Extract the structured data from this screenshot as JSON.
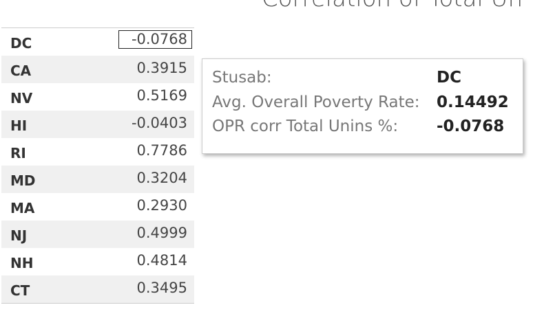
{
  "header": {
    "title": "Correlation of Total Un"
  },
  "table": {
    "rows": [
      [
        "DC",
        "-0.0768"
      ],
      [
        "CA",
        "0.3915"
      ],
      [
        "NV",
        "0.5169"
      ],
      [
        "HI",
        "-0.0403"
      ],
      [
        "RI",
        "0.7786"
      ],
      [
        "MD",
        "0.3204"
      ],
      [
        "MA",
        "0.2930"
      ],
      [
        "NJ",
        "0.4999"
      ],
      [
        "NH",
        "0.4814"
      ],
      [
        "CT",
        "0.3495"
      ]
    ]
  },
  "tooltip": {
    "rows": [
      [
        "Stusab:",
        "DC"
      ],
      [
        "Avg. Overall Poverty Rate:",
        "0.14492"
      ],
      [
        "OPR corr Total Unins %:",
        "-0.0768"
      ]
    ]
  }
}
